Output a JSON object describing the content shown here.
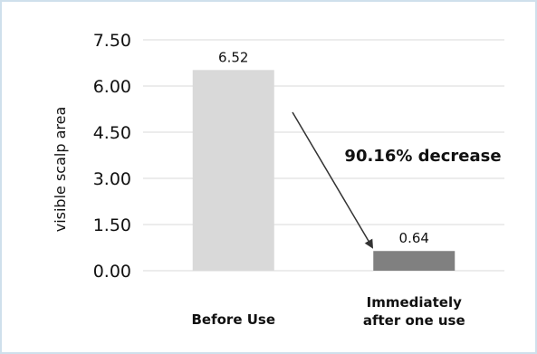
{
  "chart_data": {
    "type": "bar",
    "title": "",
    "xlabel": "",
    "ylabel": "visible scalp area",
    "ylim": [
      0,
      7.5
    ],
    "yticks": [
      0,
      1.5,
      3,
      4.5,
      6,
      7.5
    ],
    "ytick_labels": [
      "0.00",
      "1.50",
      "3.00",
      "4.50",
      "6.00",
      "7.50"
    ],
    "grid": true,
    "categories": [
      [
        "Before Use"
      ],
      [
        "Immediately",
        "after one use"
      ]
    ],
    "values": [
      6.52,
      0.64
    ],
    "data_labels": [
      "6.52",
      "0.64"
    ],
    "colors": [
      "#d9d9d9",
      "#808080"
    ],
    "annotation": "90.16% decrease"
  }
}
